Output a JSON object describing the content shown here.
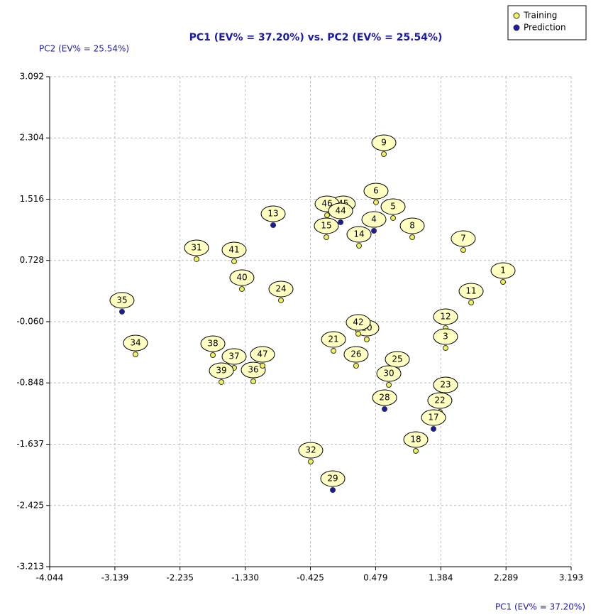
{
  "chart_data": {
    "type": "scatter",
    "title": "PC1 (EV% = 37.20%) vs. PC2 (EV% = 25.54%)",
    "x_label": "PC1 (EV% = 37.20%)",
    "y_label": "PC2 (EV% = 25.54%)",
    "xlim": [
      -4.044,
      3.193
    ],
    "xticks": [
      -4.044,
      -3.139,
      -2.235,
      {
        "value": -1.33,
        "label": "-1.330"
      },
      -0.425,
      0.479,
      1.384,
      2.289,
      3.193
    ],
    "ylim": [
      -3.213,
      3.092
    ],
    "yticks": [
      -3.213,
      -2.425,
      -1.637,
      -0.848,
      {
        "value": -0.06,
        "label": "-0.060"
      },
      0.728,
      1.516,
      2.304,
      3.092
    ],
    "grid": true,
    "legend": "top-right",
    "series": [
      {
        "name": "Training",
        "color": "#f2f25a",
        "labels": [
          "1",
          "7",
          "11",
          "9",
          "6",
          "5",
          "8",
          "45",
          "46",
          "15",
          "14",
          "31",
          "41",
          "40",
          "24",
          "34",
          "38",
          "37",
          "39",
          "36",
          "47",
          "21",
          "20",
          "42",
          "26",
          "25",
          "30",
          "12",
          "3",
          "23",
          "22",
          "18",
          "32"
        ],
        "x": [
          2.248,
          1.696,
          1.805,
          0.594,
          0.485,
          0.722,
          0.988,
          0.03,
          -0.194,
          -0.204,
          0.249,
          -2.006,
          -1.484,
          -1.376,
          -0.834,
          -2.853,
          -1.779,
          -1.484,
          -1.661,
          -1.218,
          -1.09,
          -0.105,
          0.357,
          0.239,
          0.209,
          0.781,
          0.663,
          1.45,
          1.45,
          1.45,
          1.371,
          1.037,
          -0.421
        ],
        "y": [
          0.451,
          0.862,
          0.186,
          2.096,
          1.475,
          1.274,
          1.027,
          1.31,
          1.31,
          1.027,
          0.917,
          0.744,
          0.716,
          0.36,
          0.214,
          -0.481,
          -0.49,
          -0.654,
          -0.837,
          -0.828,
          -0.627,
          -0.435,
          -0.289,
          -0.216,
          -0.627,
          -0.691,
          -0.874,
          -0.143,
          -0.399,
          -1.02,
          -1.221,
          -1.723,
          -1.861
        ]
      },
      {
        "name": "Prediction",
        "color": "#1a1aa8",
        "labels": [
          "4",
          "44",
          "13",
          "35",
          "28",
          "17",
          "29"
        ],
        "x": [
          0.456,
          -0.006,
          -0.942,
          -3.04,
          0.604,
          1.283,
          -0.115
        ],
        "y": [
          1.109,
          1.219,
          1.182,
          0.068,
          -1.184,
          -1.44,
          -2.226
        ]
      }
    ]
  }
}
